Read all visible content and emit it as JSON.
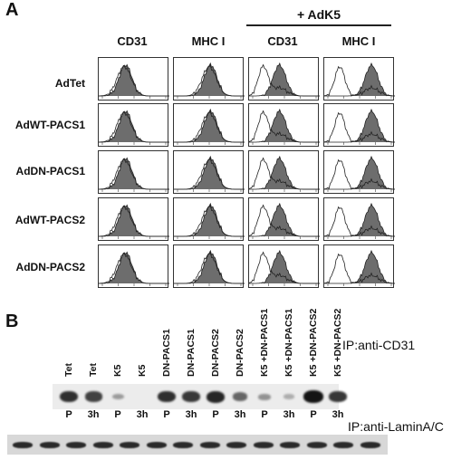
{
  "panel_a": {
    "letter": "A",
    "treatment_header": "+ AdK5",
    "columns": [
      "CD31",
      "MHC I",
      "CD31",
      "MHC I"
    ],
    "rows": [
      "AdTet",
      "AdWT-PACS1",
      "AdDN-PACS1",
      "AdWT-PACS2",
      "AdDN-PACS2"
    ]
  },
  "panel_b": {
    "letter": "B",
    "ip_cd31": "IP:anti-CD31",
    "ip_lamin": "IP:anti-LaminA/C",
    "lanes": [
      {
        "label": "Tet",
        "time": "P",
        "band": 0.85
      },
      {
        "label": "Tet",
        "time": "3h",
        "band": 0.75
      },
      {
        "label": "K5",
        "time": "P",
        "band": 0.25
      },
      {
        "label": "K5",
        "time": "3h",
        "band": 0.0
      },
      {
        "label": "DN-PACS1",
        "time": "P",
        "band": 0.85
      },
      {
        "label": "DN-PACS1",
        "time": "3h",
        "band": 0.8
      },
      {
        "label": "DN-PACS2",
        "time": "P",
        "band": 0.9
      },
      {
        "label": "DN-PACS2",
        "time": "3h",
        "band": 0.55
      },
      {
        "label": "K5 +DN-PACS1",
        "time": "P",
        "band": 0.3
      },
      {
        "label": "K5 +DN-PACS1",
        "time": "3h",
        "band": 0.15
      },
      {
        "label": "K5 +DN-PACS2",
        "time": "P",
        "band": 1.0
      },
      {
        "label": "K5 +DN-PACS2",
        "time": "3h",
        "band": 0.8
      }
    ]
  }
}
